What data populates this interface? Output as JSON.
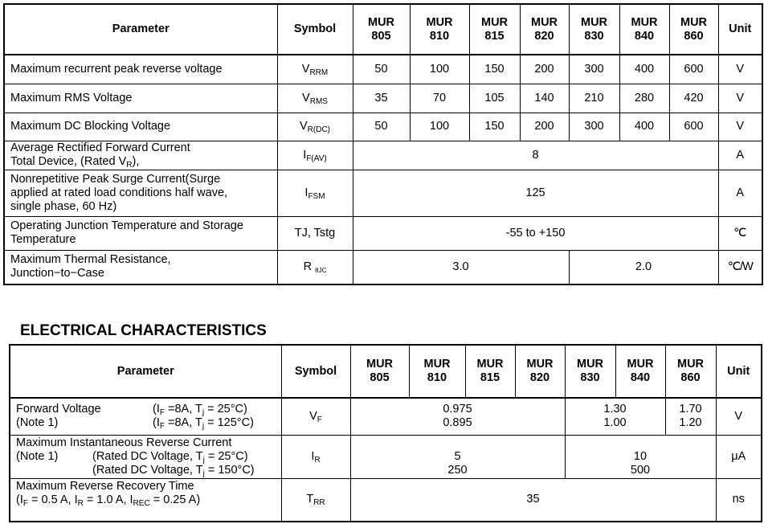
{
  "max_ratings": {
    "headers": {
      "parameter": "Parameter",
      "symbol": "Symbol",
      "models": [
        "MUR 805",
        "MUR 810",
        "MUR 815",
        "MUR 820",
        "MUR 830",
        "MUR 840",
        "MUR 860"
      ],
      "unit": "Unit"
    },
    "rows": [
      {
        "parameter": "Maximum recurrent peak reverse voltage",
        "symbol": "V",
        "sub": "RRM",
        "values": [
          "50",
          "100",
          "150",
          "200",
          "300",
          "400",
          "600"
        ],
        "unit": "V"
      },
      {
        "parameter": "Maximum RMS Voltage",
        "symbol": "V",
        "sub": "RMS",
        "values": [
          "35",
          "70",
          "105",
          "140",
          "210",
          "280",
          "420"
        ],
        "unit": "V"
      },
      {
        "parameter": "Maximum DC Blocking Voltage",
        "symbol": "V",
        "sub": "R(DC)",
        "values": [
          "50",
          "100",
          "150",
          "200",
          "300",
          "400",
          "600"
        ],
        "unit": "V"
      }
    ],
    "avg_current": {
      "line1": "Average Rectified Forward Current",
      "line2a": "Total Device, (Rated V",
      "line2sub": "R",
      "line2b": "),",
      "symbol": "I",
      "sub": "F(AV)",
      "value": "8",
      "unit": "A"
    },
    "surge": {
      "line1": "Nonrepetitive Peak Surge Current(Surge",
      "line2": "applied at rated load conditions half wave,",
      "line3": "single phase, 60 Hz)",
      "symbol": "I",
      "sub": "FSM",
      "value": "125",
      "unit": "A"
    },
    "temp": {
      "line1": "Operating Junction Temperature and Storage",
      "line2": "Temperature",
      "symbol": "TJ, Tstg",
      "value": "-55 to +150",
      "unit": "℃"
    },
    "thermal": {
      "line1": "Maximum Thermal Resistance,",
      "line2": "Junction−to−Case",
      "symbol": "R",
      "sub": "θJC",
      "value_a": "3.0",
      "value_b": "2.0",
      "unit": "℃/W"
    }
  },
  "electrical": {
    "title": "ELECTRICAL CHARACTERISTICS",
    "headers": {
      "parameter": "Parameter",
      "symbol": "Symbol",
      "models": [
        "MUR 805",
        "MUR 810",
        "MUR 815",
        "MUR 820",
        "MUR 830",
        "MUR 840",
        "MUR 860"
      ],
      "unit": "Unit"
    },
    "vf": {
      "name": "Forward Voltage",
      "note": "(Note 1)",
      "cond1": "(I",
      "cond1sub": "F",
      "cond1b": " =8A, T",
      "cond1sub2": "j",
      "cond1c": " = 25°C)",
      "cond2b": " =8A, T",
      "cond2c": " = 125°C)",
      "symbol": "V",
      "sub": "F",
      "a1": "0.975",
      "a2": "0.895",
      "b1": "1.30",
      "b2": "1.00",
      "c1": "1.70",
      "c2": "1.20",
      "unit": "V"
    },
    "ir": {
      "name": "Maximum Instantaneous Reverse Current",
      "note": "(Note 1)",
      "cond1a": "(Rated DC Voltage, T",
      "cond1sub": "j",
      "cond1b": " = 25°C)",
      "cond2b": " = 150°C)",
      "symbol": "I",
      "sub": "R",
      "a1": "5",
      "a2": "250",
      "b1": "10",
      "b2": "500",
      "unit": "μA"
    },
    "trr": {
      "name": "Maximum Reverse Recovery Time",
      "c1": "(I",
      "s1": "F",
      "c2": " = 0.5 A, I",
      "s2": "R",
      "c3": " = 1.0 A, I",
      "s3": "REC",
      "c4": " = 0.25 A)",
      "symbol": "T",
      "sub": "RR",
      "value": "35",
      "unit": "ns"
    }
  }
}
